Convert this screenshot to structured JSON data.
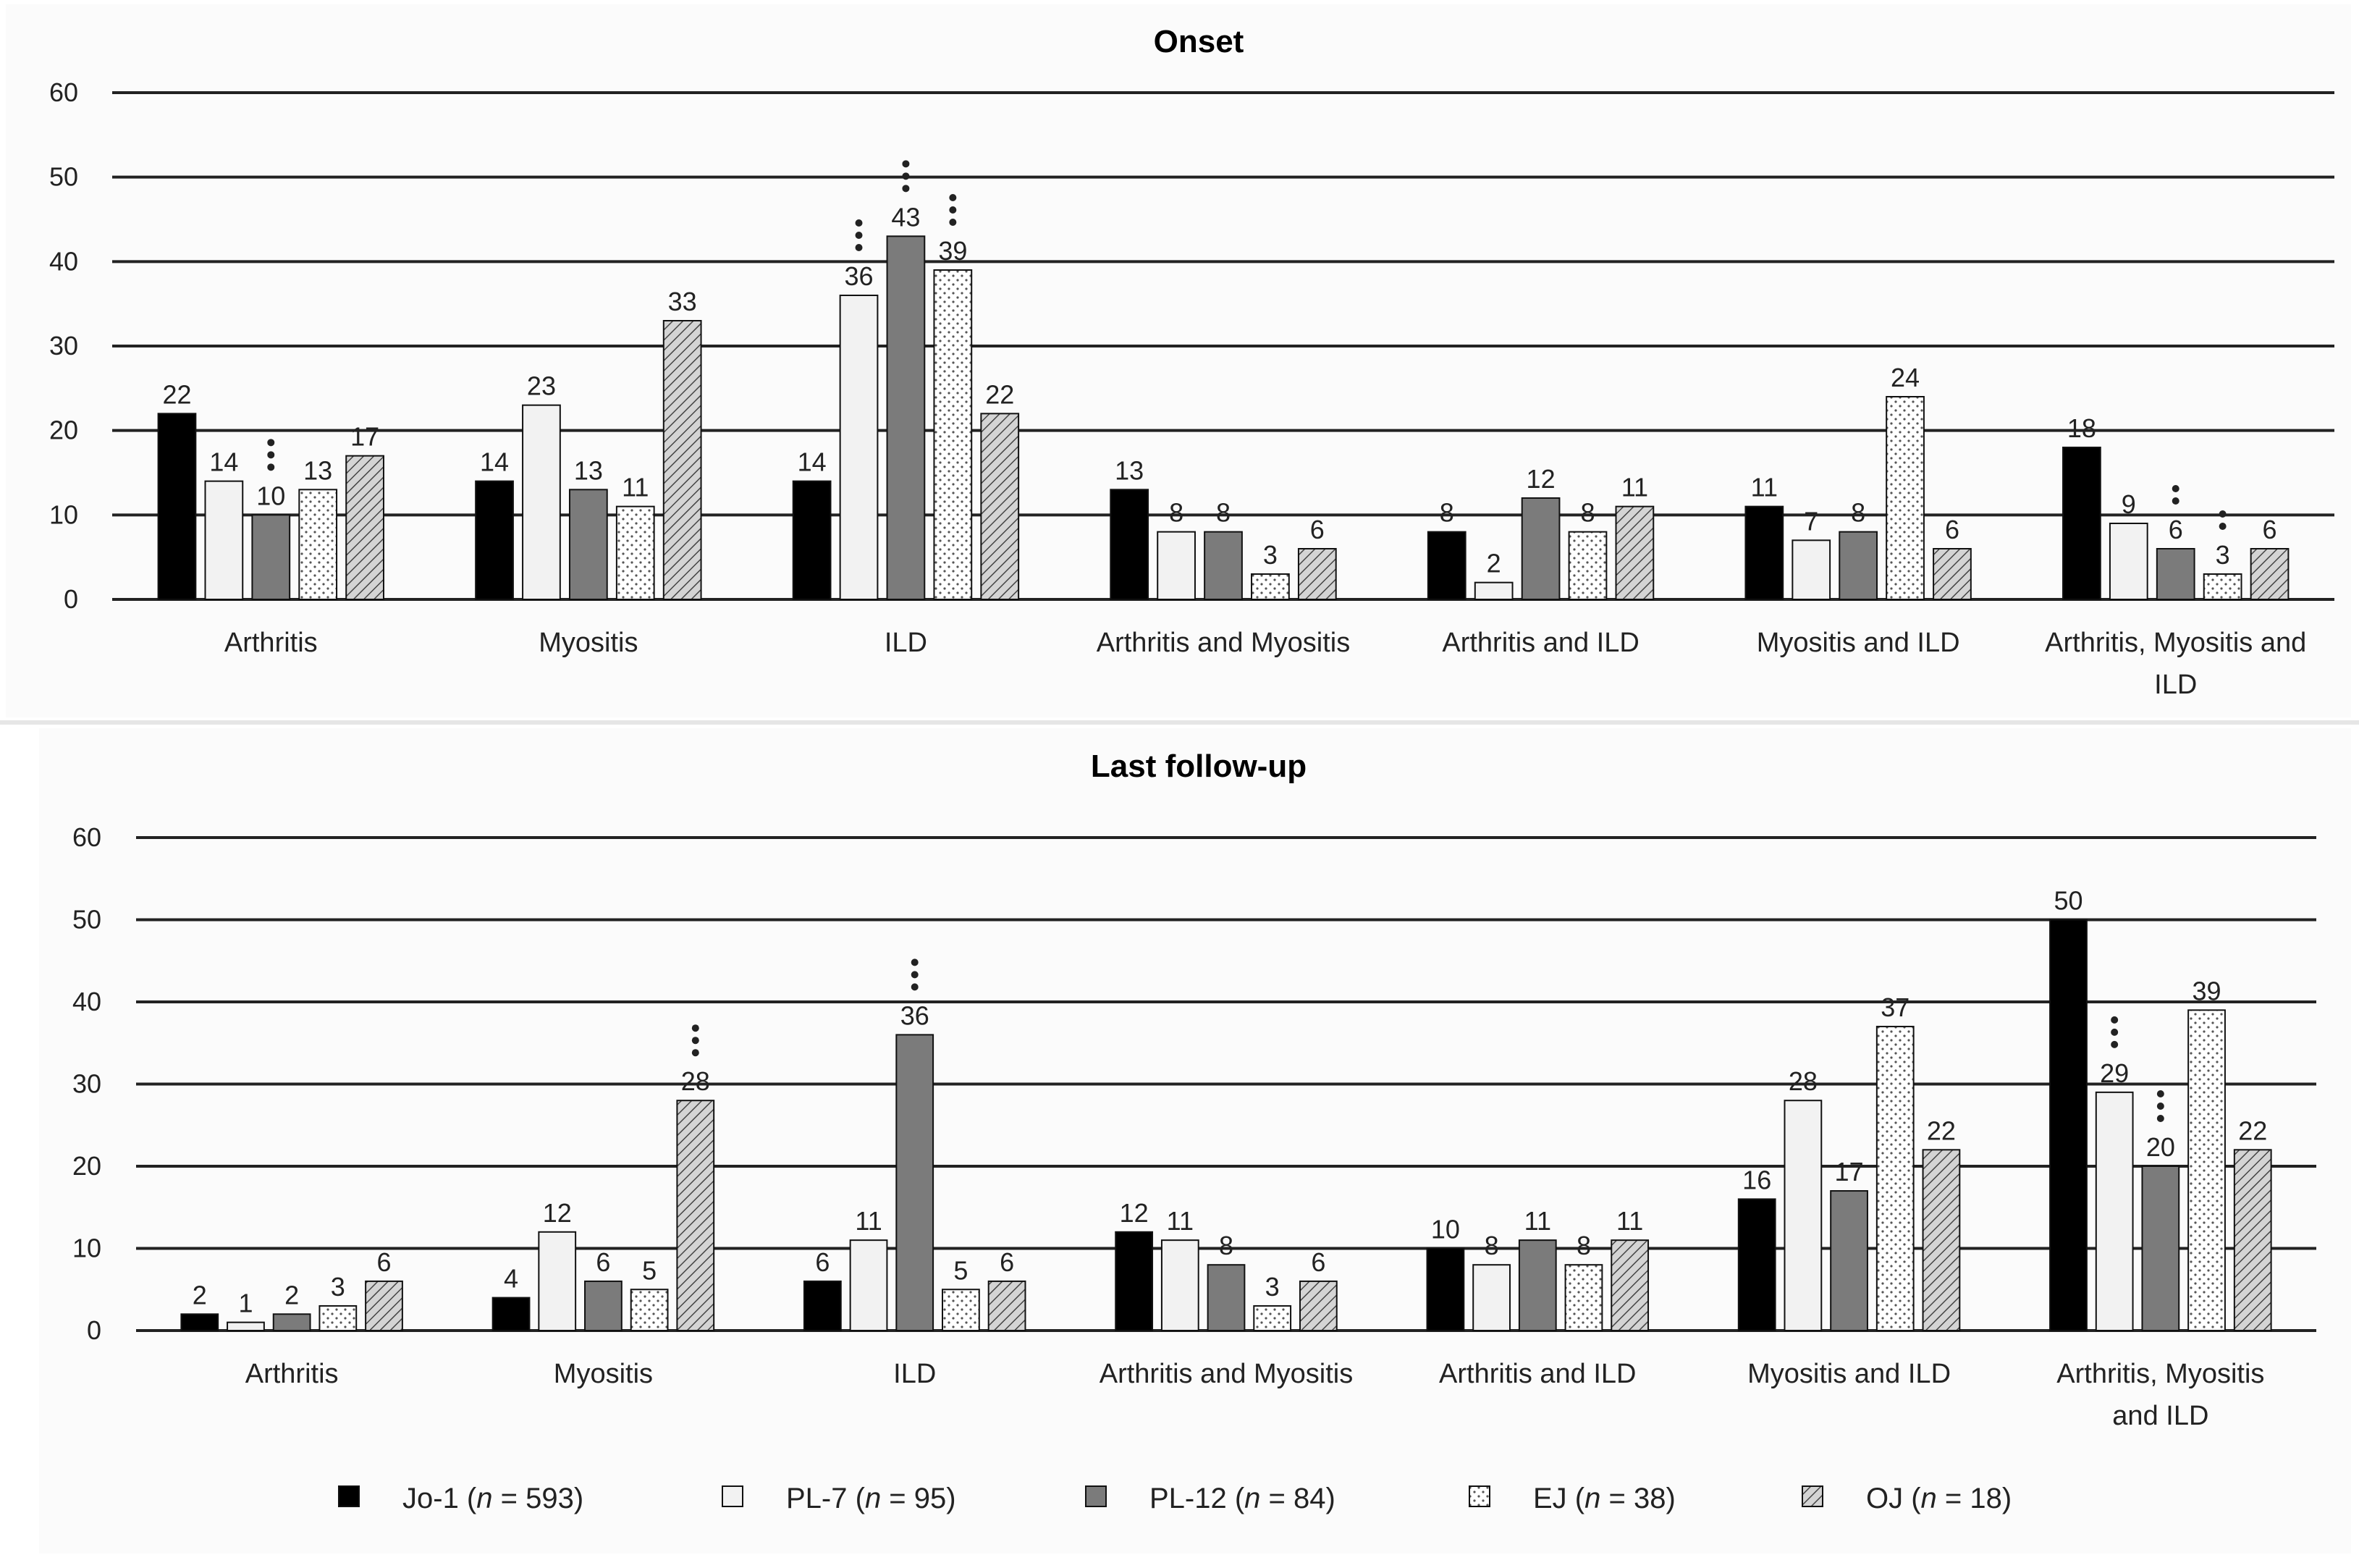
{
  "chart_data": [
    {
      "type": "bar",
      "title": "Onset",
      "categories": [
        "Arthritis",
        "Myositis",
        "ILD",
        "Arthritis and Myositis",
        "Arthritis and ILD",
        "Myositis and ILD",
        "Arthritis, Myositis and ILD"
      ],
      "category_lines": [
        [
          "Arthritis"
        ],
        [
          "Myositis"
        ],
        [
          "ILD"
        ],
        [
          "Arthritis and Myositis"
        ],
        [
          "Arthritis and ILD"
        ],
        [
          "Myositis and ILD"
        ],
        [
          "Arthritis, Myositis and",
          "ILD"
        ]
      ],
      "yticks": [
        "0",
        "10",
        "20",
        "30",
        "40",
        "50",
        "60"
      ],
      "ylim": [
        0,
        60
      ],
      "grid": true,
      "series": [
        {
          "name": "Jo-1",
          "values": [
            22,
            14,
            14,
            13,
            8,
            11,
            18
          ]
        },
        {
          "name": "PL-7",
          "values": [
            14,
            23,
            36,
            8,
            2,
            7,
            9
          ]
        },
        {
          "name": "PL-12",
          "values": [
            10,
            13,
            43,
            8,
            12,
            8,
            6
          ]
        },
        {
          "name": "EJ",
          "values": [
            13,
            11,
            39,
            3,
            8,
            24,
            3
          ]
        },
        {
          "name": "OJ",
          "values": [
            17,
            33,
            22,
            6,
            11,
            6,
            6
          ]
        }
      ],
      "significance": [
        {
          "category": 0,
          "series": 2,
          "stars": 3
        },
        {
          "category": 2,
          "series": 1,
          "stars": 3
        },
        {
          "category": 2,
          "series": 2,
          "stars": 3
        },
        {
          "category": 2,
          "series": 3,
          "stars": 3
        },
        {
          "category": 6,
          "series": 2,
          "stars": 2
        },
        {
          "category": 6,
          "series": 3,
          "stars": 2
        }
      ]
    },
    {
      "type": "bar",
      "title": "Last follow-up",
      "categories": [
        "Arthritis",
        "Myositis",
        "ILD",
        "Arthritis and Myositis",
        "Arthritis and ILD",
        "Myositis and ILD",
        "Arthritis, Myositis and ILD"
      ],
      "category_lines": [
        [
          "Arthritis"
        ],
        [
          "Myositis"
        ],
        [
          "ILD"
        ],
        [
          "Arthritis and Myositis"
        ],
        [
          "Arthritis and ILD"
        ],
        [
          "Myositis and ILD"
        ],
        [
          "Arthritis, Myositis",
          "and ILD"
        ]
      ],
      "yticks": [
        "0",
        "10",
        "20",
        "30",
        "40",
        "50",
        "60"
      ],
      "ylim": [
        0,
        60
      ],
      "grid": true,
      "series": [
        {
          "name": "Jo-1",
          "values": [
            2,
            4,
            6,
            12,
            10,
            16,
            50
          ]
        },
        {
          "name": "PL-7",
          "values": [
            1,
            12,
            11,
            11,
            8,
            28,
            29
          ]
        },
        {
          "name": "PL-12",
          "values": [
            2,
            6,
            36,
            8,
            11,
            17,
            20
          ]
        },
        {
          "name": "EJ",
          "values": [
            3,
            5,
            5,
            3,
            8,
            37,
            39
          ]
        },
        {
          "name": "OJ",
          "values": [
            6,
            28,
            6,
            6,
            11,
            22,
            22
          ]
        }
      ],
      "significance": [
        {
          "category": 1,
          "series": 4,
          "stars": 3
        },
        {
          "category": 2,
          "series": 2,
          "stars": 3
        },
        {
          "category": 6,
          "series": 1,
          "stars": 3
        },
        {
          "category": 6,
          "series": 2,
          "stars": 3
        }
      ]
    }
  ],
  "legend": [
    {
      "name": "Jo-1",
      "prefix": "Jo-1 (",
      "italic": "n",
      "suffix": " = 593)",
      "fill": "black"
    },
    {
      "name": "PL-7",
      "prefix": "PL-7 (",
      "italic": "n",
      "suffix": " = 95)",
      "fill": "white"
    },
    {
      "name": "PL-12",
      "prefix": "PL-12 (",
      "italic": "n",
      "suffix": " = 84)",
      "fill": "gray"
    },
    {
      "name": "EJ",
      "prefix": "EJ (",
      "italic": "n",
      "suffix": " = 38)",
      "fill": "dots"
    },
    {
      "name": "OJ",
      "prefix": "OJ (",
      "italic": "n",
      "suffix": " = 18)",
      "fill": "hatch"
    }
  ],
  "colors": {
    "jo1": "#000000",
    "pl7": "#f2f2f2",
    "pl12": "#7b7b7b",
    "grid": "#222222",
    "text": "#222222"
  }
}
